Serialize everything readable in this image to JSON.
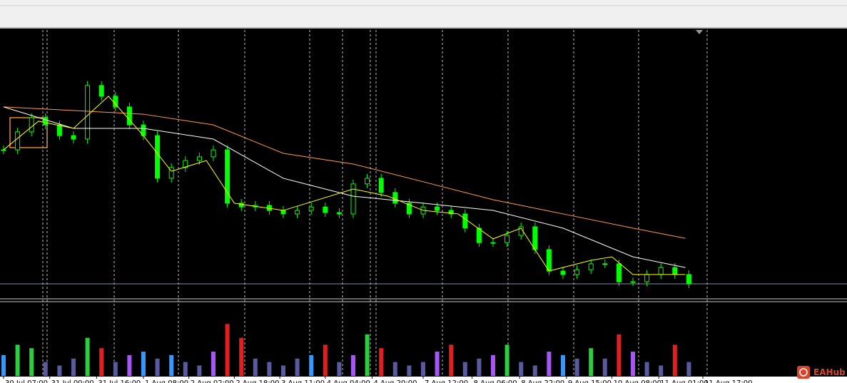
{
  "chart_data": {
    "type": "candlestick",
    "ylim": [
      0,
      100
    ],
    "closes": [
      55.3,
      62.0,
      67.3,
      64.6,
      60.6,
      59.3,
      79.3,
      75.3,
      71.3,
      64.6,
      60.6,
      44.7,
      48.7,
      51.3,
      52.7,
      55.3,
      35.4,
      34.0,
      34.6,
      32.7,
      31.4,
      32.7,
      34.0,
      31.9,
      31.4,
      42.6,
      44.7,
      39.4,
      35.4,
      31.4,
      34.0,
      32.7,
      31.4,
      26.1,
      20.7,
      20.7,
      23.4,
      26.6,
      18.1,
      10.1,
      8.8,
      10.6,
      12.8,
      12.8,
      6.1,
      6.1,
      8.8,
      11.4,
      8.8,
      5.3
    ],
    "color": "#00ff00",
    "moving_averages": [
      {
        "color": "#ff9a4a",
        "x": [
          0,
          10,
          15,
          20,
          25,
          30,
          35,
          40,
          45,
          48.75
        ],
        "values": [
          71.3,
          68.6,
          64.6,
          54.0,
          50.0,
          43.4,
          36.7,
          31.4,
          26.1,
          22.3
        ]
      },
      {
        "color": "#ffffff",
        "x": [
          0,
          5,
          10,
          15,
          20,
          25,
          30,
          35,
          40,
          45,
          48.75
        ],
        "values": [
          71.3,
          63.3,
          63.3,
          59.3,
          44.7,
          38.0,
          35.4,
          32.7,
          26.1,
          15.4,
          11.4
        ]
      },
      {
        "color": "#ffff00",
        "x": [
          0,
          2.5,
          5,
          7.5,
          10,
          12,
          14.5,
          16.5,
          20,
          25,
          27.5,
          30,
          32.5,
          35,
          37,
          39,
          42,
          43.5,
          45,
          48.75
        ],
        "values": [
          55.3,
          66.0,
          63.3,
          75.3,
          60.6,
          47.3,
          51.3,
          35.4,
          32.7,
          40.7,
          38.0,
          32.7,
          31.4,
          22.1,
          26.1,
          10.1,
          14.1,
          15.4,
          8.8,
          8.8
        ]
      }
    ],
    "volume": {
      "ylim": [
        0,
        100
      ],
      "values": [
        30,
        45,
        40,
        20,
        15,
        25,
        55,
        40,
        20,
        30,
        35,
        25,
        30,
        20,
        15,
        35,
        75,
        55,
        25,
        20,
        15,
        25,
        30,
        45,
        20,
        30,
        60,
        40,
        20,
        15,
        20,
        35,
        45,
        20,
        25,
        30,
        45,
        20,
        15,
        35,
        30,
        25,
        40,
        25,
        60,
        35,
        20,
        15,
        45,
        20
      ]
    },
    "x_labels": [
      {
        "x": 0,
        "label": "30 Jul 07:00"
      },
      {
        "x": 3.3,
        "label": "31 Jul 00:00"
      },
      {
        "x": 6.65,
        "label": "31 Jul 16:00"
      },
      {
        "x": 10,
        "label": "1 Aug 08:00"
      },
      {
        "x": 13.25,
        "label": "2 Aug 02:00"
      },
      {
        "x": 16.5,
        "label": "2 Aug 18:00"
      },
      {
        "x": 19.75,
        "label": "3 Aug 11:00"
      },
      {
        "x": 23,
        "label": "4 Aug 04:00"
      },
      {
        "x": 26.35,
        "label": "4 Aug 20:00"
      },
      {
        "x": 30,
        "label": "7 Aug 12:00"
      },
      {
        "x": 33.5,
        "label": "8 Aug 06:00"
      },
      {
        "x": 36.9,
        "label": "8 Aug 22:00"
      },
      {
        "x": 40.25,
        "label": "9 Aug 15:00"
      },
      {
        "x": 43.5,
        "label": "10 Aug 08:00"
      },
      {
        "x": 46.85,
        "label": "11 Aug 01:00"
      },
      {
        "x": 50,
        "label": "11 Aug 17:00"
      }
    ]
  },
  "watermark": "EAHub"
}
